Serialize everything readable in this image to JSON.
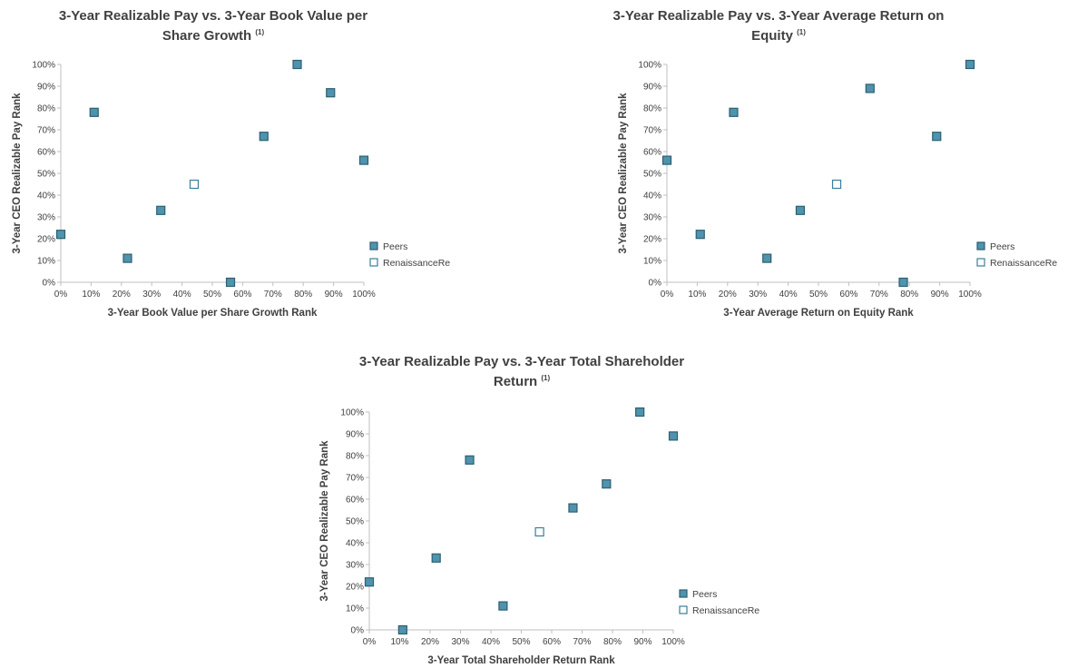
{
  "legend": {
    "peers": "Peers",
    "renre": "RenaissanceRe"
  },
  "colors": {
    "peers_fill": "#4f93ad",
    "peers_stroke": "#2c5f73",
    "renre_fill": "#ffffff",
    "renre_stroke": "#3a7f99",
    "axis": "#bfbfbf",
    "text": "#404040"
  },
  "chart_data": [
    {
      "type": "scatter",
      "title_line1": "3-Year Realizable Pay vs. 3-Year Book Value per",
      "title_line2": "Share Growth",
      "title_note": "(1)",
      "xlabel": "3-Year Book Value per Share Growth Rank",
      "ylabel": "3-Year CEO Realizable Pay Rank",
      "xlim": [
        0,
        100
      ],
      "ylim": [
        0,
        100
      ],
      "ticks": [
        "0%",
        "10%",
        "20%",
        "30%",
        "40%",
        "50%",
        "60%",
        "70%",
        "80%",
        "90%",
        "100%"
      ],
      "legend_position": "right",
      "series": [
        {
          "name": "Peers",
          "points": [
            [
              0,
              22
            ],
            [
              11,
              78
            ],
            [
              22,
              11
            ],
            [
              33,
              33
            ],
            [
              56,
              0
            ],
            [
              67,
              67
            ],
            [
              78,
              100
            ],
            [
              89,
              87
            ],
            [
              100,
              56
            ]
          ]
        },
        {
          "name": "RenaissanceRe",
          "points": [
            [
              44,
              45
            ]
          ]
        }
      ]
    },
    {
      "type": "scatter",
      "title_line1": "3-Year Realizable Pay vs. 3-Year Average Return on",
      "title_line2": "Equity",
      "title_note": "(1)",
      "xlabel": "3-Year Average Return on Equity Rank",
      "ylabel": "3-Year CEO Realizable Pay Rank",
      "xlim": [
        0,
        100
      ],
      "ylim": [
        0,
        100
      ],
      "ticks": [
        "0%",
        "10%",
        "20%",
        "30%",
        "40%",
        "50%",
        "60%",
        "70%",
        "80%",
        "90%",
        "100%"
      ],
      "legend_position": "right",
      "series": [
        {
          "name": "Peers",
          "points": [
            [
              0,
              56
            ],
            [
              11,
              22
            ],
            [
              22,
              78
            ],
            [
              33,
              11
            ],
            [
              44,
              33
            ],
            [
              67,
              89
            ],
            [
              78,
              0
            ],
            [
              89,
              67
            ],
            [
              100,
              100
            ]
          ]
        },
        {
          "name": "RenaissanceRe",
          "points": [
            [
              56,
              45
            ]
          ]
        }
      ]
    },
    {
      "type": "scatter",
      "title_line1": "3-Year Realizable Pay vs. 3-Year Total Shareholder",
      "title_line2": "Return",
      "title_note": "(1)",
      "xlabel": "3-Year Total Shareholder Return Rank",
      "ylabel": "3-Year CEO Realizable Pay Rank",
      "xlim": [
        0,
        100
      ],
      "ylim": [
        0,
        100
      ],
      "ticks": [
        "0%",
        "10%",
        "20%",
        "30%",
        "40%",
        "50%",
        "60%",
        "70%",
        "80%",
        "90%",
        "100%"
      ],
      "legend_position": "right",
      "series": [
        {
          "name": "Peers",
          "points": [
            [
              0,
              22
            ],
            [
              11,
              0
            ],
            [
              22,
              33
            ],
            [
              33,
              78
            ],
            [
              44,
              11
            ],
            [
              67,
              56
            ],
            [
              78,
              67
            ],
            [
              89,
              100
            ],
            [
              100,
              89
            ]
          ]
        },
        {
          "name": "RenaissanceRe",
          "points": [
            [
              56,
              45
            ]
          ]
        }
      ]
    }
  ]
}
